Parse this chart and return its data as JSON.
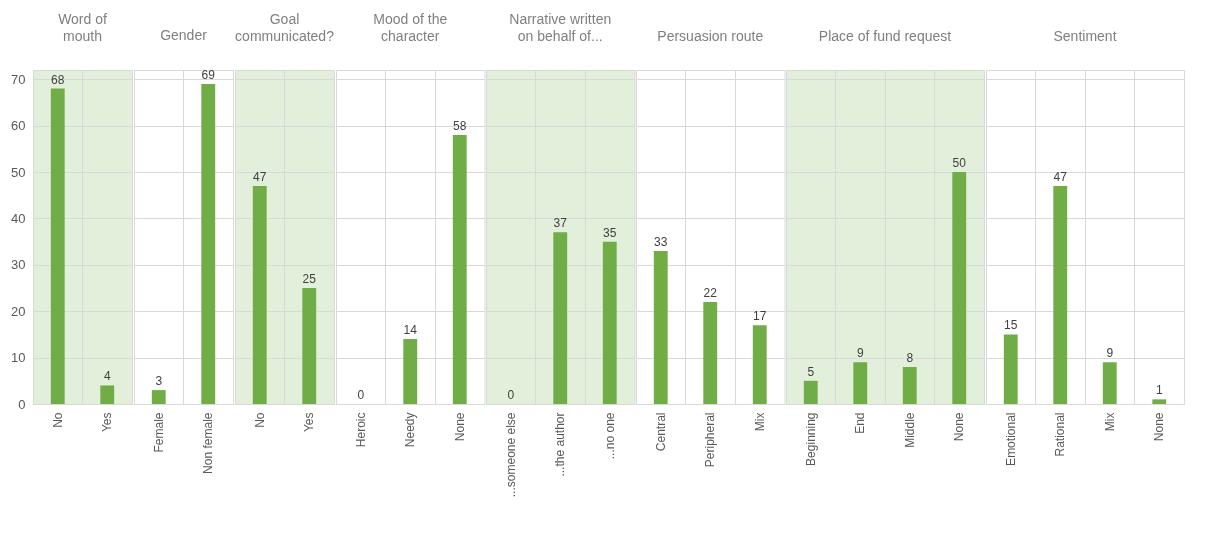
{
  "chart_data": [
    {
      "type": "bar",
      "title": "Word of mouth",
      "categories": [
        "No",
        "Yes"
      ],
      "values": [
        68,
        4
      ],
      "color": "#70ad47",
      "ylim": [
        0,
        72
      ],
      "yticks": [
        0,
        10,
        20,
        30,
        40,
        50,
        60,
        70
      ],
      "grid": true,
      "data_labels": true
    },
    {
      "type": "bar",
      "title": "Gender",
      "categories": [
        "Female",
        "Non female"
      ],
      "values": [
        3,
        69
      ],
      "color": "#70ad47",
      "ylim": [
        0,
        72
      ],
      "yticks": [
        0,
        10,
        20,
        30,
        40,
        50,
        60,
        70
      ],
      "grid": true,
      "data_labels": true,
      "tick_labels": "x"
    },
    {
      "type": "bar",
      "title": "Goal communicated?",
      "categories": [
        "No",
        "Yes"
      ],
      "values": [
        47,
        25
      ],
      "color": "#70ad47",
      "ylim": [
        0,
        72
      ],
      "yticks": [
        0,
        10,
        20,
        30,
        40,
        50,
        60,
        70
      ],
      "grid": true,
      "data_labels": true,
      "tick_labels": "x"
    },
    {
      "type": "bar",
      "title": "Mood of the character",
      "categories": [
        "Heroic",
        "Needy",
        "None"
      ],
      "values": [
        0,
        14,
        58
      ],
      "color": "#70ad47",
      "ylim": [
        0,
        72
      ],
      "yticks": [
        0,
        10,
        20,
        30,
        40,
        50,
        60,
        70
      ],
      "grid": true,
      "data_labels": true,
      "tick_labels": "x"
    },
    {
      "type": "bar",
      "title": "Narrative written on behalf of...",
      "categories": [
        "...someone else",
        "...the author",
        "...no one"
      ],
      "values": [
        0,
        37,
        35
      ],
      "color": "#70ad47",
      "ylim": [
        0,
        72
      ],
      "yticks": [
        0,
        10,
        20,
        30,
        40,
        50,
        60,
        70
      ],
      "grid": true,
      "data_labels": true,
      "tick_labels": "x"
    },
    {
      "type": "bar",
      "title": "Persuasion route",
      "categories": [
        "Central",
        "Peripheral",
        "Mix"
      ],
      "values": [
        33,
        22,
        17
      ],
      "color": "#70ad47",
      "ylim": [
        0,
        72
      ],
      "yticks": [
        0,
        10,
        20,
        30,
        40,
        50,
        60,
        70
      ],
      "grid": true,
      "data_labels": true,
      "tick_labels": "x"
    },
    {
      "type": "bar",
      "title": "Place of fund request",
      "categories": [
        "Beginning",
        "End",
        "Middle",
        "None"
      ],
      "values": [
        5,
        9,
        8,
        50
      ],
      "color": "#70ad47",
      "ylim": [
        0,
        72
      ],
      "yticks": [
        0,
        10,
        20,
        30,
        40,
        50,
        60,
        70
      ],
      "grid": true,
      "data_labels": true,
      "tick_labels": "x"
    },
    {
      "type": "bar",
      "title": "Sentiment",
      "categories": [
        "Emotional",
        "Rational",
        "Mix",
        "None"
      ],
      "values": [
        15,
        47,
        9,
        1
      ],
      "color": "#70ad47",
      "ylim": [
        0,
        72
      ],
      "yticks": [
        0,
        10,
        20,
        30,
        40,
        50,
        60,
        70
      ],
      "grid": true,
      "data_labels": true,
      "tick_labels": "x"
    }
  ]
}
